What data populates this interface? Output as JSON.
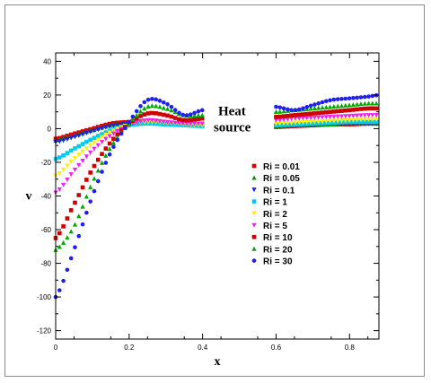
{
  "chart_data": {
    "type": "scatter",
    "xlabel": "x",
    "ylabel": "v",
    "xlim": [
      0,
      0.88
    ],
    "ylim": [
      -125,
      45
    ],
    "xticks": [
      0,
      0.2,
      0.4,
      0.6,
      0.8
    ],
    "xtick_labels": [
      "0",
      "0.2",
      "0.4",
      "0.6",
      "0.8"
    ],
    "yticks": [
      -120,
      -100,
      -80,
      -60,
      -40,
      -20,
      0,
      20,
      40
    ],
    "ytick_labels": [
      "-120",
      "-100",
      "-80",
      "-60",
      "-40",
      "-20",
      "0",
      "20",
      "40"
    ],
    "grid": false,
    "legend_position": "center-right",
    "annotations": [
      {
        "text_lines": [
          "Heat",
          "source"
        ],
        "x": 0.435,
        "y": 8
      }
    ],
    "series": [
      {
        "name": "Ri = 0.01",
        "color": "#dd0000",
        "marker": "square",
        "left": [
          [
            0,
            -6
          ],
          [
            0.05,
            -3
          ],
          [
            0.1,
            0
          ],
          [
            0.15,
            3
          ],
          [
            0.2,
            4
          ],
          [
            0.25,
            4.5
          ],
          [
            0.3,
            3.5
          ],
          [
            0.35,
            2.5
          ],
          [
            0.4,
            2
          ]
        ],
        "right": [
          [
            0.6,
            1
          ],
          [
            0.65,
            1.5
          ],
          [
            0.7,
            2
          ],
          [
            0.75,
            2.5
          ],
          [
            0.8,
            2.5
          ],
          [
            0.85,
            3
          ],
          [
            0.88,
            3
          ]
        ]
      },
      {
        "name": "Ri = 0.05",
        "color": "#009900",
        "marker": "triangle-up",
        "left": [
          [
            0,
            -7
          ],
          [
            0.05,
            -4
          ],
          [
            0.1,
            -1
          ],
          [
            0.15,
            2
          ],
          [
            0.2,
            3.5
          ],
          [
            0.25,
            4
          ],
          [
            0.3,
            3.5
          ],
          [
            0.35,
            2.5
          ],
          [
            0.4,
            2
          ]
        ],
        "right": [
          [
            0.6,
            1.5
          ],
          [
            0.65,
            2
          ],
          [
            0.7,
            2.5
          ],
          [
            0.75,
            2.5
          ],
          [
            0.8,
            3
          ],
          [
            0.85,
            3
          ],
          [
            0.88,
            3
          ]
        ]
      },
      {
        "name": "Ri = 0.1",
        "color": "#2020dd",
        "marker": "triangle-down",
        "left": [
          [
            0,
            -8
          ],
          [
            0.05,
            -5
          ],
          [
            0.1,
            -1.5
          ],
          [
            0.15,
            1.5
          ],
          [
            0.2,
            3
          ],
          [
            0.25,
            4
          ],
          [
            0.3,
            3.5
          ],
          [
            0.35,
            2.5
          ],
          [
            0.4,
            2
          ]
        ],
        "right": [
          [
            0.6,
            1.5
          ],
          [
            0.65,
            2
          ],
          [
            0.7,
            2.5
          ],
          [
            0.75,
            3
          ],
          [
            0.8,
            3
          ],
          [
            0.85,
            3
          ],
          [
            0.88,
            3
          ]
        ]
      },
      {
        "name": "Ri = 1",
        "color": "#00ccee",
        "marker": "square",
        "left": [
          [
            0,
            -18
          ],
          [
            0.05,
            -12
          ],
          [
            0.1,
            -6
          ],
          [
            0.15,
            -1
          ],
          [
            0.2,
            2
          ],
          [
            0.25,
            3
          ],
          [
            0.3,
            2.5
          ],
          [
            0.35,
            2
          ],
          [
            0.4,
            1.5
          ]
        ],
        "right": [
          [
            0.6,
            2
          ],
          [
            0.65,
            2.5
          ],
          [
            0.7,
            3
          ],
          [
            0.75,
            3.5
          ],
          [
            0.8,
            4
          ],
          [
            0.85,
            4
          ],
          [
            0.88,
            4
          ]
        ]
      },
      {
        "name": "Ri = 2",
        "color": "#ffee00",
        "marker": "triangle-down",
        "left": [
          [
            0,
            -28
          ],
          [
            0.05,
            -18
          ],
          [
            0.1,
            -9
          ],
          [
            0.15,
            -2
          ],
          [
            0.2,
            2.5
          ],
          [
            0.25,
            4
          ],
          [
            0.3,
            3.5
          ],
          [
            0.35,
            2.5
          ],
          [
            0.4,
            2
          ]
        ],
        "right": [
          [
            0.6,
            3
          ],
          [
            0.65,
            3.5
          ],
          [
            0.7,
            4
          ],
          [
            0.75,
            4.5
          ],
          [
            0.8,
            5
          ],
          [
            0.85,
            5.5
          ],
          [
            0.88,
            5.5
          ]
        ]
      },
      {
        "name": "Ri = 5",
        "color": "#ee22ee",
        "marker": "triangle-down",
        "left": [
          [
            0,
            -38
          ],
          [
            0.05,
            -25
          ],
          [
            0.1,
            -13
          ],
          [
            0.15,
            -4
          ],
          [
            0.2,
            2
          ],
          [
            0.25,
            5
          ],
          [
            0.3,
            4
          ],
          [
            0.35,
            3
          ],
          [
            0.4,
            3
          ]
        ],
        "right": [
          [
            0.6,
            5
          ],
          [
            0.65,
            6
          ],
          [
            0.7,
            6.5
          ],
          [
            0.75,
            7
          ],
          [
            0.8,
            7.5
          ],
          [
            0.85,
            8
          ],
          [
            0.88,
            8
          ]
        ]
      },
      {
        "name": "Ri = 10",
        "color": "#cc0000",
        "marker": "square",
        "left": [
          [
            0,
            -65
          ],
          [
            0.05,
            -45
          ],
          [
            0.1,
            -24
          ],
          [
            0.15,
            -8
          ],
          [
            0.2,
            3
          ],
          [
            0.25,
            9
          ],
          [
            0.3,
            8
          ],
          [
            0.35,
            5
          ],
          [
            0.4,
            6
          ]
        ],
        "right": [
          [
            0.6,
            7
          ],
          [
            0.65,
            8
          ],
          [
            0.7,
            9
          ],
          [
            0.75,
            10
          ],
          [
            0.8,
            11
          ],
          [
            0.85,
            12
          ],
          [
            0.88,
            12
          ]
        ]
      },
      {
        "name": "Ri = 20",
        "color": "#00aa00",
        "marker": "triangle-up",
        "left": [
          [
            0,
            -72
          ],
          [
            0.05,
            -58
          ],
          [
            0.1,
            -32
          ],
          [
            0.15,
            -11
          ],
          [
            0.2,
            3
          ],
          [
            0.25,
            13
          ],
          [
            0.3,
            12
          ],
          [
            0.35,
            8
          ],
          [
            0.4,
            8
          ]
        ],
        "right": [
          [
            0.6,
            10
          ],
          [
            0.65,
            11
          ],
          [
            0.7,
            12
          ],
          [
            0.75,
            13
          ],
          [
            0.8,
            14
          ],
          [
            0.85,
            15
          ],
          [
            0.88,
            15
          ]
        ]
      },
      {
        "name": "Ri = 30",
        "color": "#2020ee",
        "marker": "circle",
        "left": [
          [
            0,
            -100
          ],
          [
            0.05,
            -72
          ],
          [
            0.1,
            -40
          ],
          [
            0.15,
            -14
          ],
          [
            0.2,
            4
          ],
          [
            0.25,
            17
          ],
          [
            0.3,
            15
          ],
          [
            0.35,
            8
          ],
          [
            0.4,
            11
          ]
        ],
        "right": [
          [
            0.6,
            13
          ],
          [
            0.65,
            11
          ],
          [
            0.7,
            14
          ],
          [
            0.75,
            17
          ],
          [
            0.8,
            18
          ],
          [
            0.85,
            19
          ],
          [
            0.88,
            20
          ]
        ]
      }
    ]
  }
}
